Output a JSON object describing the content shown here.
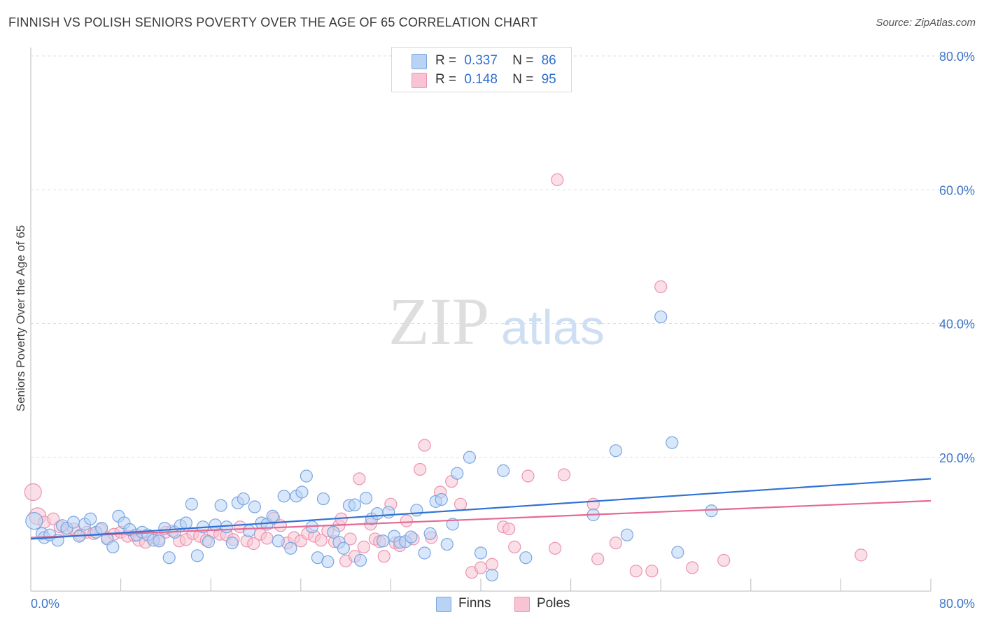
{
  "title": "FINNISH VS POLISH SENIORS POVERTY OVER THE AGE OF 65 CORRELATION CHART",
  "source": "Source: ZipAtlas.com",
  "watermark": {
    "zip": "ZIP",
    "atlas": "atlas"
  },
  "legend": {
    "finns": {
      "r_label": "R =",
      "r_value": "0.337",
      "n_label": "N =",
      "n_value": "86"
    },
    "poles": {
      "r_label": "R =",
      "r_value": "0.148",
      "n_label": "N =",
      "n_value": "95"
    }
  },
  "bottom_legend": {
    "finns": "Finns",
    "poles": "Poles"
  },
  "colors": {
    "finns_fill": "#b9d3f5",
    "finns_stroke": "#7aa6e0",
    "finns_line": "#2f72d6",
    "poles_fill": "#f8c4d4",
    "poles_stroke": "#ec94b0",
    "poles_line": "#e46a94",
    "tick_text": "#3f76c8",
    "grid": "#dddddd"
  },
  "chart_data": {
    "type": "scatter",
    "title": "FINNISH VS POLISH SENIORS POVERTY OVER THE AGE OF 65 CORRELATION CHART",
    "xlabel": "",
    "ylabel": "Seniors Poverty Over the Age of 65",
    "xlim": [
      0,
      80
    ],
    "ylim": [
      0,
      80
    ],
    "x_tick_labels": [
      "0.0%",
      "80.0%"
    ],
    "y_ticks": [
      20,
      40,
      60,
      80
    ],
    "y_tick_labels": [
      "20.0%",
      "40.0%",
      "60.0%",
      "80.0%"
    ],
    "grid": true,
    "series": [
      {
        "name": "Finns",
        "trend": [
          [
            0,
            7.8
          ],
          [
            80,
            16.8
          ]
        ],
        "points": [
          [
            0.3,
            10.5,
            2
          ],
          [
            1.0,
            8.6,
            1
          ],
          [
            1.2,
            8.0,
            1
          ],
          [
            1.7,
            8.4,
            1
          ],
          [
            2.4,
            7.6,
            1
          ],
          [
            2.8,
            9.8,
            1
          ],
          [
            3.2,
            9.4,
            1
          ],
          [
            3.8,
            10.3,
            1
          ],
          [
            4.3,
            8.2,
            1
          ],
          [
            4.8,
            10.0,
            1
          ],
          [
            5.3,
            10.8,
            1
          ],
          [
            5.8,
            8.8,
            1
          ],
          [
            6.3,
            9.4,
            1
          ],
          [
            6.8,
            7.8,
            1
          ],
          [
            7.3,
            6.6,
            1
          ],
          [
            7.8,
            11.2,
            1
          ],
          [
            8.3,
            10.2,
            1
          ],
          [
            8.8,
            9.2,
            1
          ],
          [
            9.4,
            8.4,
            1
          ],
          [
            9.9,
            8.8,
            1
          ],
          [
            10.4,
            8.4,
            1
          ],
          [
            10.9,
            7.6,
            1
          ],
          [
            11.4,
            7.5,
            1
          ],
          [
            11.9,
            9.4,
            1
          ],
          [
            12.3,
            5.0,
            1
          ],
          [
            12.8,
            8.8,
            1
          ],
          [
            13.3,
            9.8,
            1
          ],
          [
            13.8,
            10.2,
            1
          ],
          [
            14.3,
            13.0,
            1
          ],
          [
            14.8,
            5.3,
            1
          ],
          [
            15.3,
            9.6,
            1
          ],
          [
            15.8,
            7.4,
            1
          ],
          [
            16.4,
            9.9,
            1
          ],
          [
            16.9,
            12.8,
            1
          ],
          [
            17.4,
            9.6,
            1
          ],
          [
            17.9,
            7.2,
            1
          ],
          [
            18.4,
            13.2,
            1
          ],
          [
            18.9,
            13.8,
            1
          ],
          [
            19.4,
            9.0,
            1
          ],
          [
            19.9,
            12.6,
            1
          ],
          [
            20.5,
            10.2,
            1
          ],
          [
            21.0,
            10.0,
            1
          ],
          [
            21.5,
            11.2,
            1
          ],
          [
            22.0,
            7.5,
            1
          ],
          [
            22.5,
            14.2,
            1
          ],
          [
            23.1,
            6.4,
            1
          ],
          [
            23.6,
            14.2,
            1
          ],
          [
            24.1,
            14.8,
            1
          ],
          [
            24.5,
            17.2,
            1
          ],
          [
            25.0,
            9.6,
            1
          ],
          [
            25.5,
            5.0,
            1
          ],
          [
            26.0,
            13.8,
            1
          ],
          [
            26.4,
            4.4,
            1
          ],
          [
            26.9,
            8.8,
            1
          ],
          [
            27.4,
            7.3,
            1
          ],
          [
            27.8,
            6.4,
            1
          ],
          [
            28.3,
            12.8,
            1
          ],
          [
            28.8,
            12.9,
            1
          ],
          [
            29.3,
            4.6,
            1
          ],
          [
            29.8,
            13.9,
            1
          ],
          [
            30.3,
            10.8,
            1
          ],
          [
            30.8,
            11.6,
            1
          ],
          [
            31.3,
            7.5,
            1
          ],
          [
            31.8,
            11.8,
            1
          ],
          [
            32.3,
            8.2,
            1
          ],
          [
            32.8,
            7.3,
            1
          ],
          [
            33.3,
            7.4,
            1
          ],
          [
            33.8,
            8.1,
            1
          ],
          [
            34.3,
            12.1,
            1
          ],
          [
            35.0,
            5.7,
            1
          ],
          [
            35.5,
            8.6,
            1
          ],
          [
            36.0,
            13.4,
            1
          ],
          [
            36.5,
            13.7,
            1
          ],
          [
            37.0,
            7.0,
            1
          ],
          [
            37.5,
            10.0,
            1
          ],
          [
            37.9,
            17.6,
            1
          ],
          [
            39.0,
            20.0,
            1
          ],
          [
            40.0,
            5.7,
            1
          ],
          [
            41.0,
            2.4,
            1
          ],
          [
            42.0,
            18.0,
            1
          ],
          [
            44.0,
            5.0,
            1
          ],
          [
            50.0,
            11.4,
            1
          ],
          [
            52.0,
            21.0,
            1
          ],
          [
            53.0,
            8.4,
            1
          ],
          [
            56.0,
            41.0,
            1
          ],
          [
            57.0,
            22.2,
            1
          ],
          [
            57.5,
            5.8,
            1
          ],
          [
            60.5,
            12.0,
            1
          ]
        ]
      },
      {
        "name": "Poles",
        "trend": [
          [
            0,
            8.0
          ],
          [
            80,
            13.5
          ]
        ],
        "points": [
          [
            0.2,
            14.8,
            2
          ],
          [
            0.6,
            11.2,
            2
          ],
          [
            1.2,
            10.3,
            1
          ],
          [
            2.0,
            10.8,
            1
          ],
          [
            2.6,
            9.6,
            1
          ],
          [
            3.2,
            9.1,
            1
          ],
          [
            3.8,
            9.3,
            1
          ],
          [
            4.4,
            8.4,
            1
          ],
          [
            5.0,
            8.8,
            1
          ],
          [
            5.6,
            8.6,
            1
          ],
          [
            6.2,
            9.2,
            1
          ],
          [
            6.8,
            8.0,
            1
          ],
          [
            7.4,
            8.5,
            1
          ],
          [
            8.0,
            8.8,
            1
          ],
          [
            8.6,
            8.2,
            1
          ],
          [
            9.2,
            8.3,
            1
          ],
          [
            9.6,
            7.6,
            1
          ],
          [
            10.2,
            7.3,
            1
          ],
          [
            10.8,
            8.0,
            1
          ],
          [
            11.4,
            7.8,
            1
          ],
          [
            12.0,
            8.8,
            1
          ],
          [
            12.6,
            9.0,
            1
          ],
          [
            13.2,
            7.5,
            1
          ],
          [
            13.8,
            7.7,
            1
          ],
          [
            14.4,
            8.6,
            1
          ],
          [
            15.0,
            8.2,
            1
          ],
          [
            15.6,
            7.6,
            1
          ],
          [
            16.2,
            8.8,
            1
          ],
          [
            16.8,
            8.5,
            1
          ],
          [
            17.4,
            8.4,
            1
          ],
          [
            18.0,
            7.7,
            1
          ],
          [
            18.6,
            9.6,
            1
          ],
          [
            19.2,
            7.5,
            1
          ],
          [
            19.8,
            7.1,
            1
          ],
          [
            20.4,
            8.5,
            1
          ],
          [
            21.0,
            7.9,
            1
          ],
          [
            21.6,
            10.9,
            1
          ],
          [
            22.2,
            9.8,
            1
          ],
          [
            22.8,
            7.2,
            1
          ],
          [
            23.4,
            8.0,
            1
          ],
          [
            24.0,
            7.5,
            1
          ],
          [
            24.6,
            8.6,
            1
          ],
          [
            25.2,
            8.2,
            1
          ],
          [
            25.8,
            7.6,
            1
          ],
          [
            26.4,
            9.0,
            1
          ],
          [
            27.0,
            7.4,
            1
          ],
          [
            27.4,
            9.8,
            1
          ],
          [
            27.6,
            10.8,
            1
          ],
          [
            28.0,
            4.5,
            1
          ],
          [
            28.4,
            7.8,
            1
          ],
          [
            28.8,
            5.2,
            1
          ],
          [
            29.2,
            16.8,
            1
          ],
          [
            29.6,
            6.6,
            1
          ],
          [
            30.2,
            10.0,
            1
          ],
          [
            30.6,
            7.8,
            1
          ],
          [
            31.0,
            7.4,
            1
          ],
          [
            31.4,
            5.2,
            1
          ],
          [
            32.0,
            13.0,
            1
          ],
          [
            32.4,
            7.2,
            1
          ],
          [
            32.8,
            6.8,
            1
          ],
          [
            33.4,
            10.5,
            1
          ],
          [
            34.0,
            7.8,
            1
          ],
          [
            34.6,
            18.2,
            1
          ],
          [
            35.0,
            21.8,
            1
          ],
          [
            35.6,
            8.0,
            1
          ],
          [
            36.4,
            14.8,
            1
          ],
          [
            37.4,
            16.4,
            1
          ],
          [
            38.2,
            13.0,
            1
          ],
          [
            39.2,
            2.8,
            1
          ],
          [
            40.0,
            3.5,
            1
          ],
          [
            41.0,
            4.0,
            1
          ],
          [
            42.0,
            9.6,
            1
          ],
          [
            42.5,
            9.3,
            1
          ],
          [
            43.0,
            6.6,
            1
          ],
          [
            44.2,
            17.2,
            1
          ],
          [
            46.6,
            6.4,
            1
          ],
          [
            46.8,
            61.5,
            1
          ],
          [
            47.4,
            17.4,
            1
          ],
          [
            50.0,
            13.0,
            1
          ],
          [
            50.4,
            4.8,
            1
          ],
          [
            52.0,
            7.2,
            1
          ],
          [
            53.8,
            3.0,
            1
          ],
          [
            55.2,
            3.0,
            1
          ],
          [
            56.0,
            45.5,
            1
          ],
          [
            58.8,
            3.5,
            1
          ],
          [
            61.6,
            4.6,
            1
          ],
          [
            73.8,
            5.4,
            1
          ]
        ]
      }
    ]
  }
}
